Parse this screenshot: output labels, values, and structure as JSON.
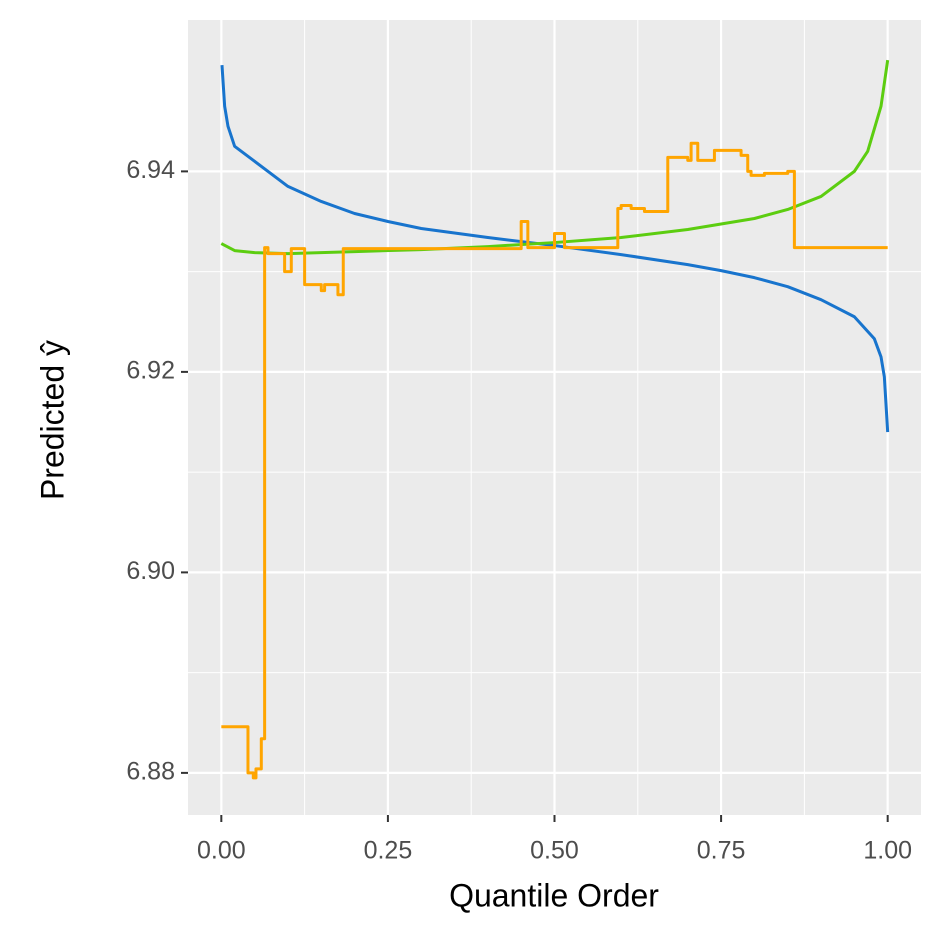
{
  "chart_data": {
    "type": "line",
    "x_label": "Quantile Order",
    "y_label": "Predicted ŷ",
    "xlim": [
      -0.05,
      1.05
    ],
    "ylim": [
      6.8758,
      6.9551
    ],
    "xticks": [
      {
        "value": 0,
        "label": "0.00"
      },
      {
        "value": 0.25,
        "label": "0.25"
      },
      {
        "value": 0.5,
        "label": "0.50"
      },
      {
        "value": 0.75,
        "label": "0.75"
      },
      {
        "value": 1,
        "label": "1.00"
      }
    ],
    "yticks": [
      {
        "value": 6.88,
        "label": "6.88"
      },
      {
        "value": 6.9,
        "label": "6.90"
      },
      {
        "value": 6.92,
        "label": "6.92"
      },
      {
        "value": 6.94,
        "label": "6.94"
      }
    ],
    "x_minor_ticks": [
      0.125,
      0.375,
      0.625,
      0.875
    ],
    "y_minor_ticks": [
      6.89,
      6.91,
      6.93
    ],
    "grid": true,
    "series": [
      {
        "color": "#1874cd",
        "step": false,
        "x": [
          0.001,
          0.005,
          0.01,
          0.02,
          0.05,
          0.1,
          0.15,
          0.2,
          0.25,
          0.3,
          0.4,
          0.5,
          0.6,
          0.7,
          0.75,
          0.8,
          0.85,
          0.9,
          0.95,
          0.98,
          0.99,
          0.995,
          1.0
        ],
        "values": [
          6.9506,
          6.9465,
          6.9445,
          6.9425,
          6.941,
          6.9385,
          6.937,
          6.9358,
          6.935,
          6.9343,
          6.9334,
          6.9326,
          6.9317,
          6.9307,
          6.9301,
          6.9294,
          6.9285,
          6.9272,
          6.9255,
          6.9233,
          6.9215,
          6.9195,
          6.914
        ]
      },
      {
        "color": "#5ccd10",
        "step": false,
        "x": [
          0,
          0.02,
          0.05,
          0.1,
          0.2,
          0.3,
          0.4,
          0.5,
          0.6,
          0.7,
          0.8,
          0.85,
          0.9,
          0.95,
          0.97,
          0.99,
          1.0
        ],
        "values": [
          6.9328,
          6.9321,
          6.9319,
          6.9318,
          6.932,
          6.9322,
          6.9325,
          6.9329,
          6.9334,
          6.9342,
          6.9353,
          6.9362,
          6.9375,
          6.94,
          6.942,
          6.9465,
          6.9511
        ]
      },
      {
        "color": "#ffa500",
        "step": true,
        "x": [
          0,
          0.04,
          0.048,
          0.052,
          0.06,
          0.065,
          0.07,
          0.095,
          0.105,
          0.125,
          0.15,
          0.155,
          0.175,
          0.183,
          0.45,
          0.46,
          0.5,
          0.515,
          0.595,
          0.6,
          0.615,
          0.635,
          0.67,
          0.7,
          0.705,
          0.715,
          0.74,
          0.78,
          0.79,
          0.795,
          0.815,
          0.85,
          0.86,
          1.0
        ],
        "values": [
          6.8846,
          6.88,
          6.8795,
          6.8804,
          6.8834,
          6.9324,
          6.9318,
          6.93,
          6.9323,
          6.9287,
          6.9281,
          6.9287,
          6.9277,
          6.9323,
          6.935,
          6.9324,
          6.9338,
          6.9324,
          6.9363,
          6.9366,
          6.9363,
          6.936,
          6.9414,
          6.9411,
          6.9428,
          6.9411,
          6.9421,
          6.9416,
          6.94,
          6.9396,
          6.9398,
          6.94,
          6.9324,
          6.9324
        ]
      }
    ]
  }
}
